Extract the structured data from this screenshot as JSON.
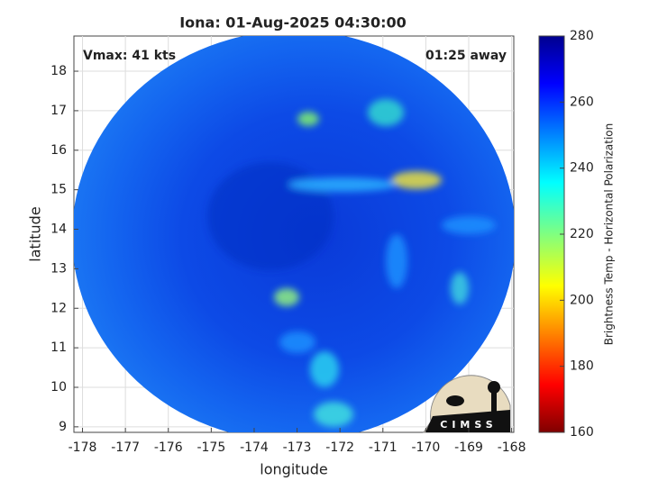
{
  "title": "Iona: 01-Aug-2025 04:30:00",
  "annotations": {
    "vmax": "Vmax: 41 kts",
    "time_away": "01:25 away"
  },
  "axes": {
    "xlabel": "longitude",
    "ylabel": "latitude",
    "xlim": [
      -178.2,
      -167.95
    ],
    "ylim": [
      8.86,
      18.89
    ],
    "xticks": [
      -178,
      -177,
      -176,
      -175,
      -174,
      -173,
      -172,
      -171,
      -170,
      -169,
      -168
    ],
    "yticks": [
      9,
      10,
      11,
      12,
      13,
      14,
      15,
      16,
      17,
      18
    ],
    "grid": true
  },
  "colorbar": {
    "label": "Brightness Temp - Horizontal Polarization",
    "lim": [
      160,
      280
    ],
    "ticks": [
      160,
      180,
      200,
      220,
      240,
      260,
      280
    ]
  },
  "logo": "CIMSS"
}
